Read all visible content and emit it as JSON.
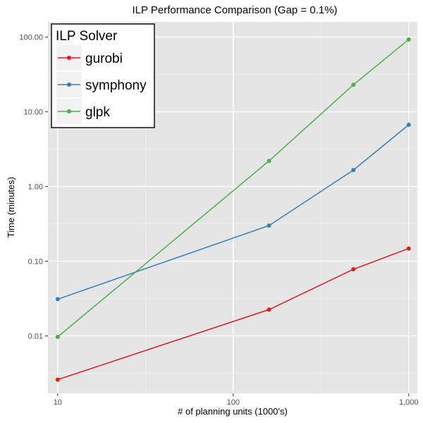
{
  "chart_data": {
    "type": "line",
    "title": "ILP Performance Comparison (Gap = 0.1%)",
    "xlabel": "# of planning units (1000's)",
    "ylabel": "Time (minutes)",
    "x_scale": "log10",
    "y_scale": "log10",
    "xlim": [
      8.8,
      1120
    ],
    "ylim": [
      0.0017,
      160
    ],
    "x_ticks": [
      10,
      100,
      1000
    ],
    "x_tick_labels": [
      "10",
      "100",
      "1,000"
    ],
    "y_ticks": [
      0.01,
      0.1,
      1,
      10,
      100
    ],
    "y_tick_labels": [
      "0.01",
      "0.10",
      "1.00",
      "10.00",
      "100.00"
    ],
    "grid": true,
    "legend": {
      "title": "ILP Solver",
      "position": "top-left"
    },
    "series": [
      {
        "name": "gurobi",
        "color": "#E41A1C",
        "x": [
          10,
          160,
          484,
          1000
        ],
        "y": [
          0.0026,
          0.0225,
          0.078,
          0.148
        ]
      },
      {
        "name": "symphony",
        "color": "#377EB8",
        "x": [
          10,
          160,
          484,
          1000
        ],
        "y": [
          0.031,
          0.3,
          1.66,
          6.7
        ]
      },
      {
        "name": "glpk",
        "color": "#4DAF4A",
        "x": [
          10,
          160,
          484,
          1000
        ],
        "y": [
          0.0097,
          2.2,
          23,
          93
        ]
      }
    ]
  }
}
